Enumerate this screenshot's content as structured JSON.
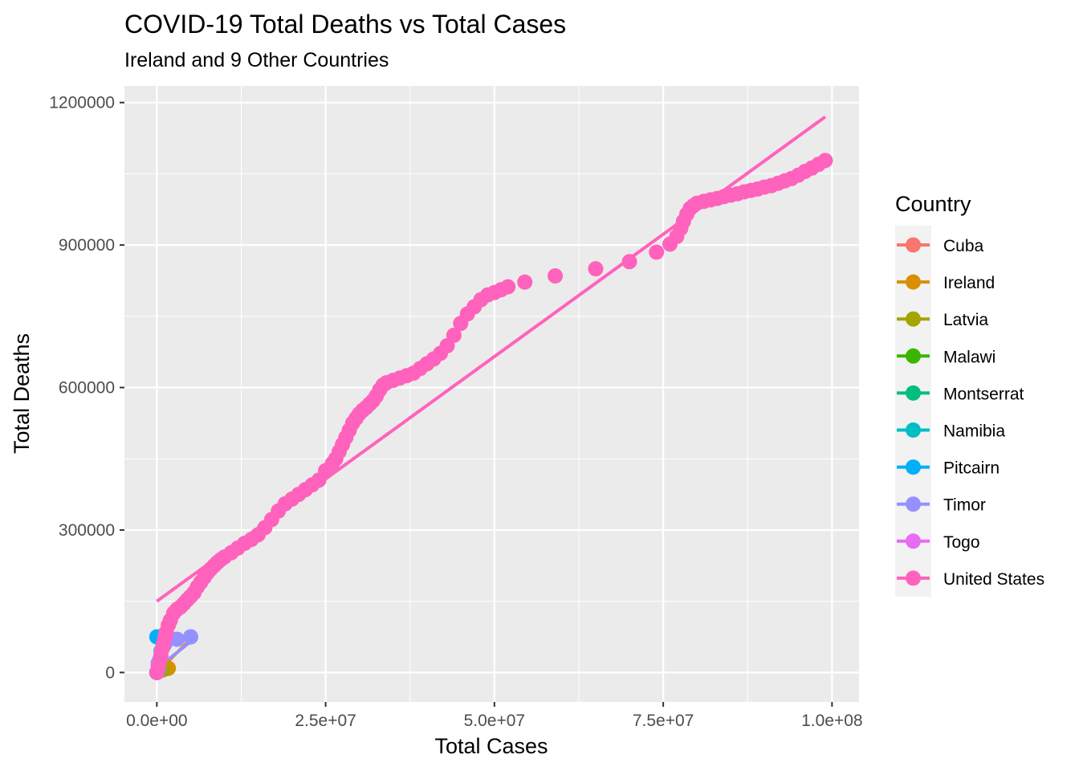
{
  "chart_data": {
    "type": "scatter",
    "title": "COVID-19 Total Deaths vs Total Cases",
    "subtitle": "Ireland and 9 Other Countries",
    "xlabel": "Total Cases",
    "ylabel": "Total Deaths",
    "xlim": [
      -4800000,
      104000000
    ],
    "ylim": [
      -62000,
      1235000
    ],
    "x_ticks": [
      0,
      25000000,
      50000000,
      75000000,
      100000000
    ],
    "x_tick_labels": [
      "0.0e+00",
      "2.5e+07",
      "5.0e+07",
      "7.5e+07",
      "1.0e+08"
    ],
    "y_ticks": [
      0,
      300000,
      600000,
      900000,
      1200000
    ],
    "y_tick_labels": [
      "0",
      "300000",
      "600000",
      "900000",
      "1200000"
    ],
    "grid": true,
    "legend": {
      "title": "Country",
      "position": "right"
    },
    "series": [
      {
        "name": "Cuba",
        "color": "#F8766D",
        "points": [
          [
            0,
            0
          ],
          [
            300000,
            2000
          ],
          [
            700000,
            5000
          ],
          [
            1100000,
            8500
          ]
        ],
        "trend": [
          [
            0,
            1000
          ],
          [
            1100000,
            8000
          ]
        ]
      },
      {
        "name": "Ireland",
        "color": "#D89000",
        "points": [
          [
            0,
            0
          ],
          [
            500000,
            4000
          ],
          [
            1000000,
            6500
          ],
          [
            1600000,
            8500
          ],
          [
            1700000,
            9000
          ]
        ],
        "trend": [
          [
            0,
            0
          ],
          [
            5000000,
            70000
          ]
        ]
      },
      {
        "name": "Latvia",
        "color": "#A3A500",
        "points": [
          [
            0,
            0
          ],
          [
            400000,
            4000
          ],
          [
            800000,
            5500
          ],
          [
            950000,
            6000
          ]
        ],
        "trend": [
          [
            0,
            0
          ],
          [
            950000,
            6000
          ]
        ]
      },
      {
        "name": "Malawi",
        "color": "#39B600",
        "points": [
          [
            0,
            0
          ],
          [
            40000,
            1500
          ],
          [
            88000,
            2680
          ]
        ],
        "trend": [
          [
            0,
            0
          ],
          [
            88000,
            2680
          ]
        ]
      },
      {
        "name": "Montserrat",
        "color": "#00BF7D",
        "points": [
          [
            0,
            0
          ],
          [
            1400,
            8
          ]
        ],
        "trend": [
          [
            0,
            0
          ],
          [
            1400,
            8
          ]
        ]
      },
      {
        "name": "Namibia",
        "color": "#00BFC4",
        "points": [
          [
            0,
            0
          ],
          [
            100000,
            3000
          ],
          [
            170000,
            4000
          ]
        ],
        "trend": [
          [
            0,
            0
          ],
          [
            170000,
            4000
          ]
        ]
      },
      {
        "name": "Pitcairn",
        "color": "#00B0F6",
        "points": [
          [
            0,
            75000
          ],
          [
            5000000,
            75000
          ]
        ],
        "trend": [
          [
            0,
            75000
          ],
          [
            5000000,
            75000
          ]
        ]
      },
      {
        "name": "Timor",
        "color": "#9590FF",
        "points": [
          [
            0,
            0
          ],
          [
            23000,
            138
          ],
          [
            200000,
            20000
          ],
          [
            600000,
            45000
          ],
          [
            1200000,
            60000
          ],
          [
            3000000,
            70000
          ],
          [
            5000000,
            75000
          ]
        ],
        "trend": [
          [
            0,
            8000
          ],
          [
            5000000,
            65000
          ]
        ]
      },
      {
        "name": "Togo",
        "color": "#E76BF3",
        "points": [
          [
            0,
            0
          ],
          [
            39000,
            290
          ],
          [
            200000,
            15000
          ],
          [
            500000,
            30000
          ]
        ],
        "trend": [
          [
            0,
            5000
          ],
          [
            500000,
            30000
          ]
        ]
      },
      {
        "name": "United States",
        "color": "#FF62BC",
        "points": [
          [
            0,
            0
          ],
          [
            100000,
            4000
          ],
          [
            300000,
            12000
          ],
          [
            600000,
            35000
          ],
          [
            800000,
            50000
          ],
          [
            1000000,
            62000
          ],
          [
            1200000,
            75000
          ],
          [
            1400000,
            85000
          ],
          [
            1700000,
            100000
          ],
          [
            2000000,
            110000
          ],
          [
            2500000,
            125000
          ],
          [
            3000000,
            133000
          ],
          [
            3500000,
            138000
          ],
          [
            4000000,
            145000
          ],
          [
            4500000,
            153000
          ],
          [
            5000000,
            160000
          ],
          [
            5500000,
            168000
          ],
          [
            6000000,
            180000
          ],
          [
            6500000,
            190000
          ],
          [
            7000000,
            200000
          ],
          [
            7500000,
            210000
          ],
          [
            8000000,
            218000
          ],
          [
            8500000,
            225000
          ],
          [
            9000000,
            232000
          ],
          [
            9500000,
            238000
          ],
          [
            10000000,
            243000
          ],
          [
            11000000,
            252000
          ],
          [
            12000000,
            262000
          ],
          [
            13000000,
            272000
          ],
          [
            14000000,
            280000
          ],
          [
            15000000,
            290000
          ],
          [
            16000000,
            305000
          ],
          [
            17000000,
            322000
          ],
          [
            18000000,
            340000
          ],
          [
            19000000,
            355000
          ],
          [
            20000000,
            365000
          ],
          [
            21000000,
            375000
          ],
          [
            22000000,
            385000
          ],
          [
            23000000,
            395000
          ],
          [
            24000000,
            405000
          ],
          [
            25000000,
            425000
          ],
          [
            26000000,
            440000
          ],
          [
            26500000,
            450000
          ],
          [
            27000000,
            465000
          ],
          [
            27500000,
            480000
          ],
          [
            28000000,
            495000
          ],
          [
            28500000,
            510000
          ],
          [
            29000000,
            525000
          ],
          [
            29500000,
            535000
          ],
          [
            30000000,
            545000
          ],
          [
            30500000,
            552000
          ],
          [
            31000000,
            558000
          ],
          [
            31500000,
            565000
          ],
          [
            32000000,
            572000
          ],
          [
            32500000,
            582000
          ],
          [
            33000000,
            595000
          ],
          [
            33500000,
            605000
          ],
          [
            34000000,
            610000
          ],
          [
            35000000,
            615000
          ],
          [
            36000000,
            620000
          ],
          [
            37000000,
            625000
          ],
          [
            38000000,
            630000
          ],
          [
            39000000,
            640000
          ],
          [
            40000000,
            650000
          ],
          [
            41000000,
            660000
          ],
          [
            42000000,
            672000
          ],
          [
            43000000,
            688000
          ],
          [
            44000000,
            710000
          ],
          [
            45000000,
            735000
          ],
          [
            46000000,
            755000
          ],
          [
            47000000,
            770000
          ],
          [
            48000000,
            785000
          ],
          [
            49000000,
            795000
          ],
          [
            50000000,
            800000
          ],
          [
            51000000,
            806000
          ],
          [
            52000000,
            812000
          ],
          [
            54500000,
            822000
          ],
          [
            59000000,
            835000
          ],
          [
            65000000,
            850000
          ],
          [
            70000000,
            865000
          ],
          [
            74000000,
            885000
          ],
          [
            76000000,
            902000
          ],
          [
            77000000,
            918000
          ],
          [
            77600000,
            935000
          ],
          [
            78000000,
            950000
          ],
          [
            78500000,
            965000
          ],
          [
            79000000,
            977000
          ],
          [
            79500000,
            983000
          ],
          [
            80000000,
            988000
          ],
          [
            81000000,
            992000
          ],
          [
            82000000,
            995000
          ],
          [
            83000000,
            998000
          ],
          [
            84000000,
            1002000
          ],
          [
            85000000,
            1005000
          ],
          [
            86000000,
            1008000
          ],
          [
            87000000,
            1012000
          ],
          [
            88000000,
            1015000
          ],
          [
            89000000,
            1018000
          ],
          [
            90000000,
            1022000
          ],
          [
            91000000,
            1025000
          ],
          [
            92000000,
            1030000
          ],
          [
            93000000,
            1035000
          ],
          [
            94000000,
            1040000
          ],
          [
            95000000,
            1047000
          ],
          [
            96000000,
            1055000
          ],
          [
            97000000,
            1062000
          ],
          [
            98000000,
            1070000
          ],
          [
            99000000,
            1078000
          ]
        ],
        "trend": [
          [
            0,
            150000
          ],
          [
            99000000,
            1170000
          ]
        ]
      }
    ]
  }
}
